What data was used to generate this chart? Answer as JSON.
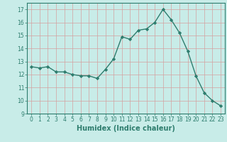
{
  "x": [
    0,
    1,
    2,
    3,
    4,
    5,
    6,
    7,
    8,
    9,
    10,
    11,
    12,
    13,
    14,
    15,
    16,
    17,
    18,
    19,
    20,
    21,
    22,
    23
  ],
  "y": [
    12.6,
    12.5,
    12.6,
    12.2,
    12.2,
    12.0,
    11.9,
    11.9,
    11.7,
    12.4,
    13.2,
    14.9,
    14.7,
    15.4,
    15.5,
    16.0,
    17.0,
    16.2,
    15.2,
    13.8,
    11.9,
    10.6,
    10.0,
    9.6
  ],
  "line_color": "#2e7d6e",
  "marker": "D",
  "marker_size": 2.2,
  "line_width": 1.0,
  "xlabel": "Humidex (Indice chaleur)",
  "xlabel_fontsize": 7,
  "xlim": [
    -0.5,
    23.5
  ],
  "ylim": [
    9,
    17.5
  ],
  "yticks": [
    9,
    10,
    11,
    12,
    13,
    14,
    15,
    16,
    17
  ],
  "xticks": [
    0,
    1,
    2,
    3,
    4,
    5,
    6,
    7,
    8,
    9,
    10,
    11,
    12,
    13,
    14,
    15,
    16,
    17,
    18,
    19,
    20,
    21,
    22,
    23
  ],
  "background_color": "#c8ece8",
  "grid_color": "#d4a0a0",
  "tick_fontsize": 5.5
}
